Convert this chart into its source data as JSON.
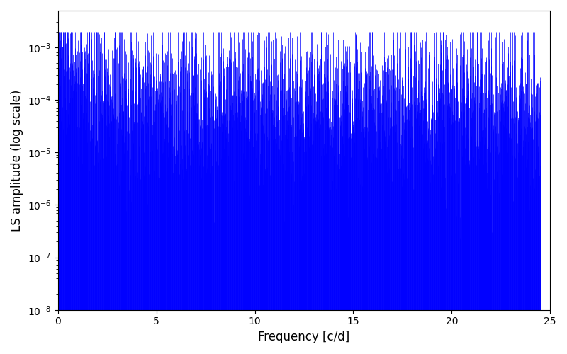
{
  "xlabel": "Frequency [c/d]",
  "ylabel": "LS amplitude (log scale)",
  "title": "",
  "xlim": [
    0,
    25
  ],
  "ylim": [
    1e-08,
    0.005
  ],
  "line_color": "blue",
  "background_color": "white",
  "figsize": [
    8.0,
    5.0
  ],
  "dpi": 100,
  "xlabel_fontsize": 12,
  "ylabel_fontsize": 12,
  "n_points": 2500,
  "freq_max": 24.5,
  "seed": 137
}
